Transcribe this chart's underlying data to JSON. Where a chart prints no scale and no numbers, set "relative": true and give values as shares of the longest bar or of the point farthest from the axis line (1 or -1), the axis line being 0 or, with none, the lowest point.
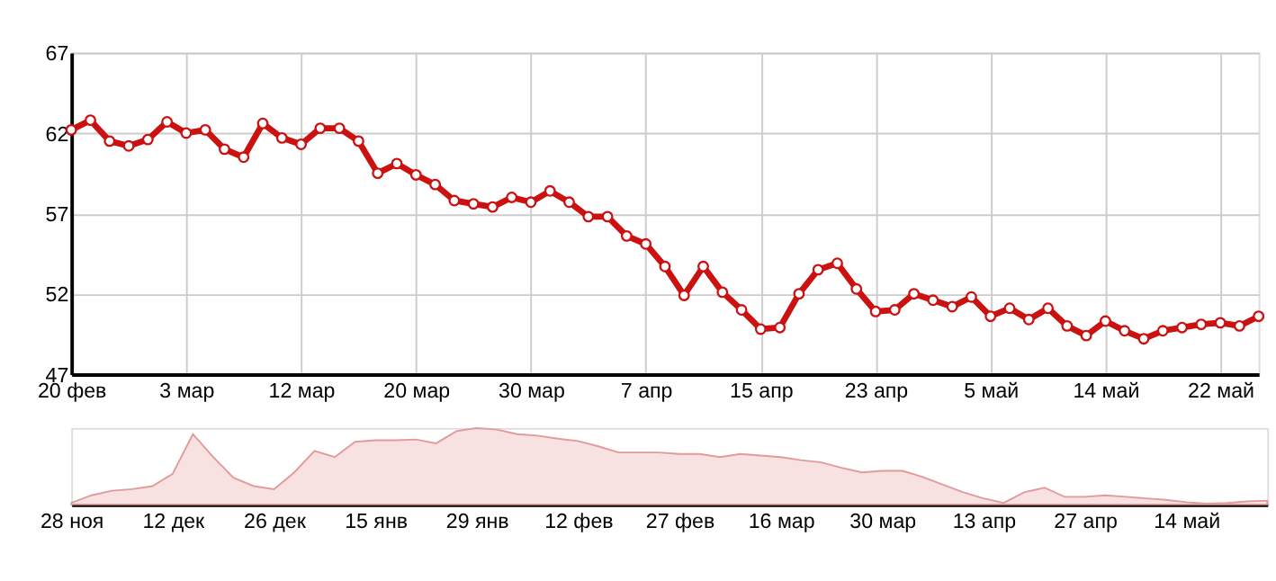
{
  "chart_data": [
    {
      "type": "line",
      "categories": [
        "20 фев",
        null,
        null,
        null,
        null,
        null,
        "3 мар",
        null,
        null,
        null,
        null,
        null,
        "12 мар",
        null,
        null,
        null,
        null,
        null,
        "20 мар",
        null,
        null,
        null,
        null,
        null,
        "30 мар",
        null,
        null,
        null,
        null,
        null,
        "7 апр",
        null,
        null,
        null,
        null,
        null,
        "15 апр",
        null,
        null,
        null,
        null,
        null,
        "23 апр",
        null,
        null,
        null,
        null,
        null,
        "5 май",
        null,
        null,
        null,
        null,
        null,
        "14 май",
        null,
        null,
        null,
        null,
        null,
        "22 май",
        null,
        null
      ],
      "values": [
        62.2,
        62.8,
        61.5,
        61.2,
        61.6,
        62.7,
        62.0,
        62.2,
        61.0,
        60.5,
        62.6,
        61.7,
        61.3,
        62.3,
        62.3,
        61.5,
        59.5,
        60.1,
        59.4,
        58.8,
        57.8,
        57.6,
        57.4,
        58.0,
        57.7,
        58.4,
        57.7,
        56.8,
        56.8,
        55.6,
        55.1,
        53.7,
        51.9,
        53.7,
        52.1,
        51.0,
        49.8,
        49.9,
        52.0,
        53.5,
        53.9,
        52.3,
        50.9,
        51.0,
        52.0,
        51.6,
        51.2,
        51.8,
        50.6,
        51.1,
        50.4,
        51.1,
        50.0,
        49.4,
        50.3,
        49.7,
        49.2,
        49.7,
        49.9,
        50.1,
        50.2,
        50.0,
        50.6
      ],
      "color": "#cc1111",
      "marker": "circle",
      "line_style": "solid",
      "ylim": [
        47,
        67
      ],
      "yticks": [
        47,
        52,
        57,
        62,
        67
      ],
      "grid": true
    },
    {
      "type": "area",
      "relative": true,
      "tick_labels": "x",
      "grid": false,
      "color": "#e39a9a",
      "categories": [
        "28 ноя",
        null,
        null,
        null,
        null,
        "12 дек",
        null,
        null,
        null,
        null,
        "26 дек",
        null,
        null,
        null,
        null,
        "15 янв",
        null,
        null,
        null,
        null,
        "29 янв",
        null,
        null,
        null,
        null,
        "12 фев",
        null,
        null,
        null,
        null,
        "27 фев",
        null,
        null,
        null,
        null,
        "16 мар",
        null,
        null,
        null,
        null,
        "30 мар",
        null,
        null,
        null,
        null,
        "13 апр",
        null,
        null,
        null,
        null,
        "27 апр",
        null,
        null,
        null,
        null,
        "14 май",
        null,
        null,
        null,
        null
      ],
      "values": [
        0.02,
        0.12,
        0.18,
        0.2,
        0.24,
        0.4,
        0.92,
        0.62,
        0.35,
        0.24,
        0.2,
        0.42,
        0.7,
        0.62,
        0.82,
        0.84,
        0.84,
        0.85,
        0.8,
        0.96,
        1.0,
        0.98,
        0.92,
        0.9,
        0.86,
        0.83,
        0.76,
        0.68,
        0.68,
        0.68,
        0.66,
        0.66,
        0.62,
        0.66,
        0.64,
        0.62,
        0.58,
        0.55,
        0.48,
        0.42,
        0.44,
        0.44,
        0.36,
        0.26,
        0.16,
        0.08,
        0.02,
        0.16,
        0.22,
        0.1,
        0.1,
        0.12,
        0.1,
        0.08,
        0.06,
        0.03,
        0.01,
        0.02,
        0.04,
        0.05
      ]
    }
  ]
}
